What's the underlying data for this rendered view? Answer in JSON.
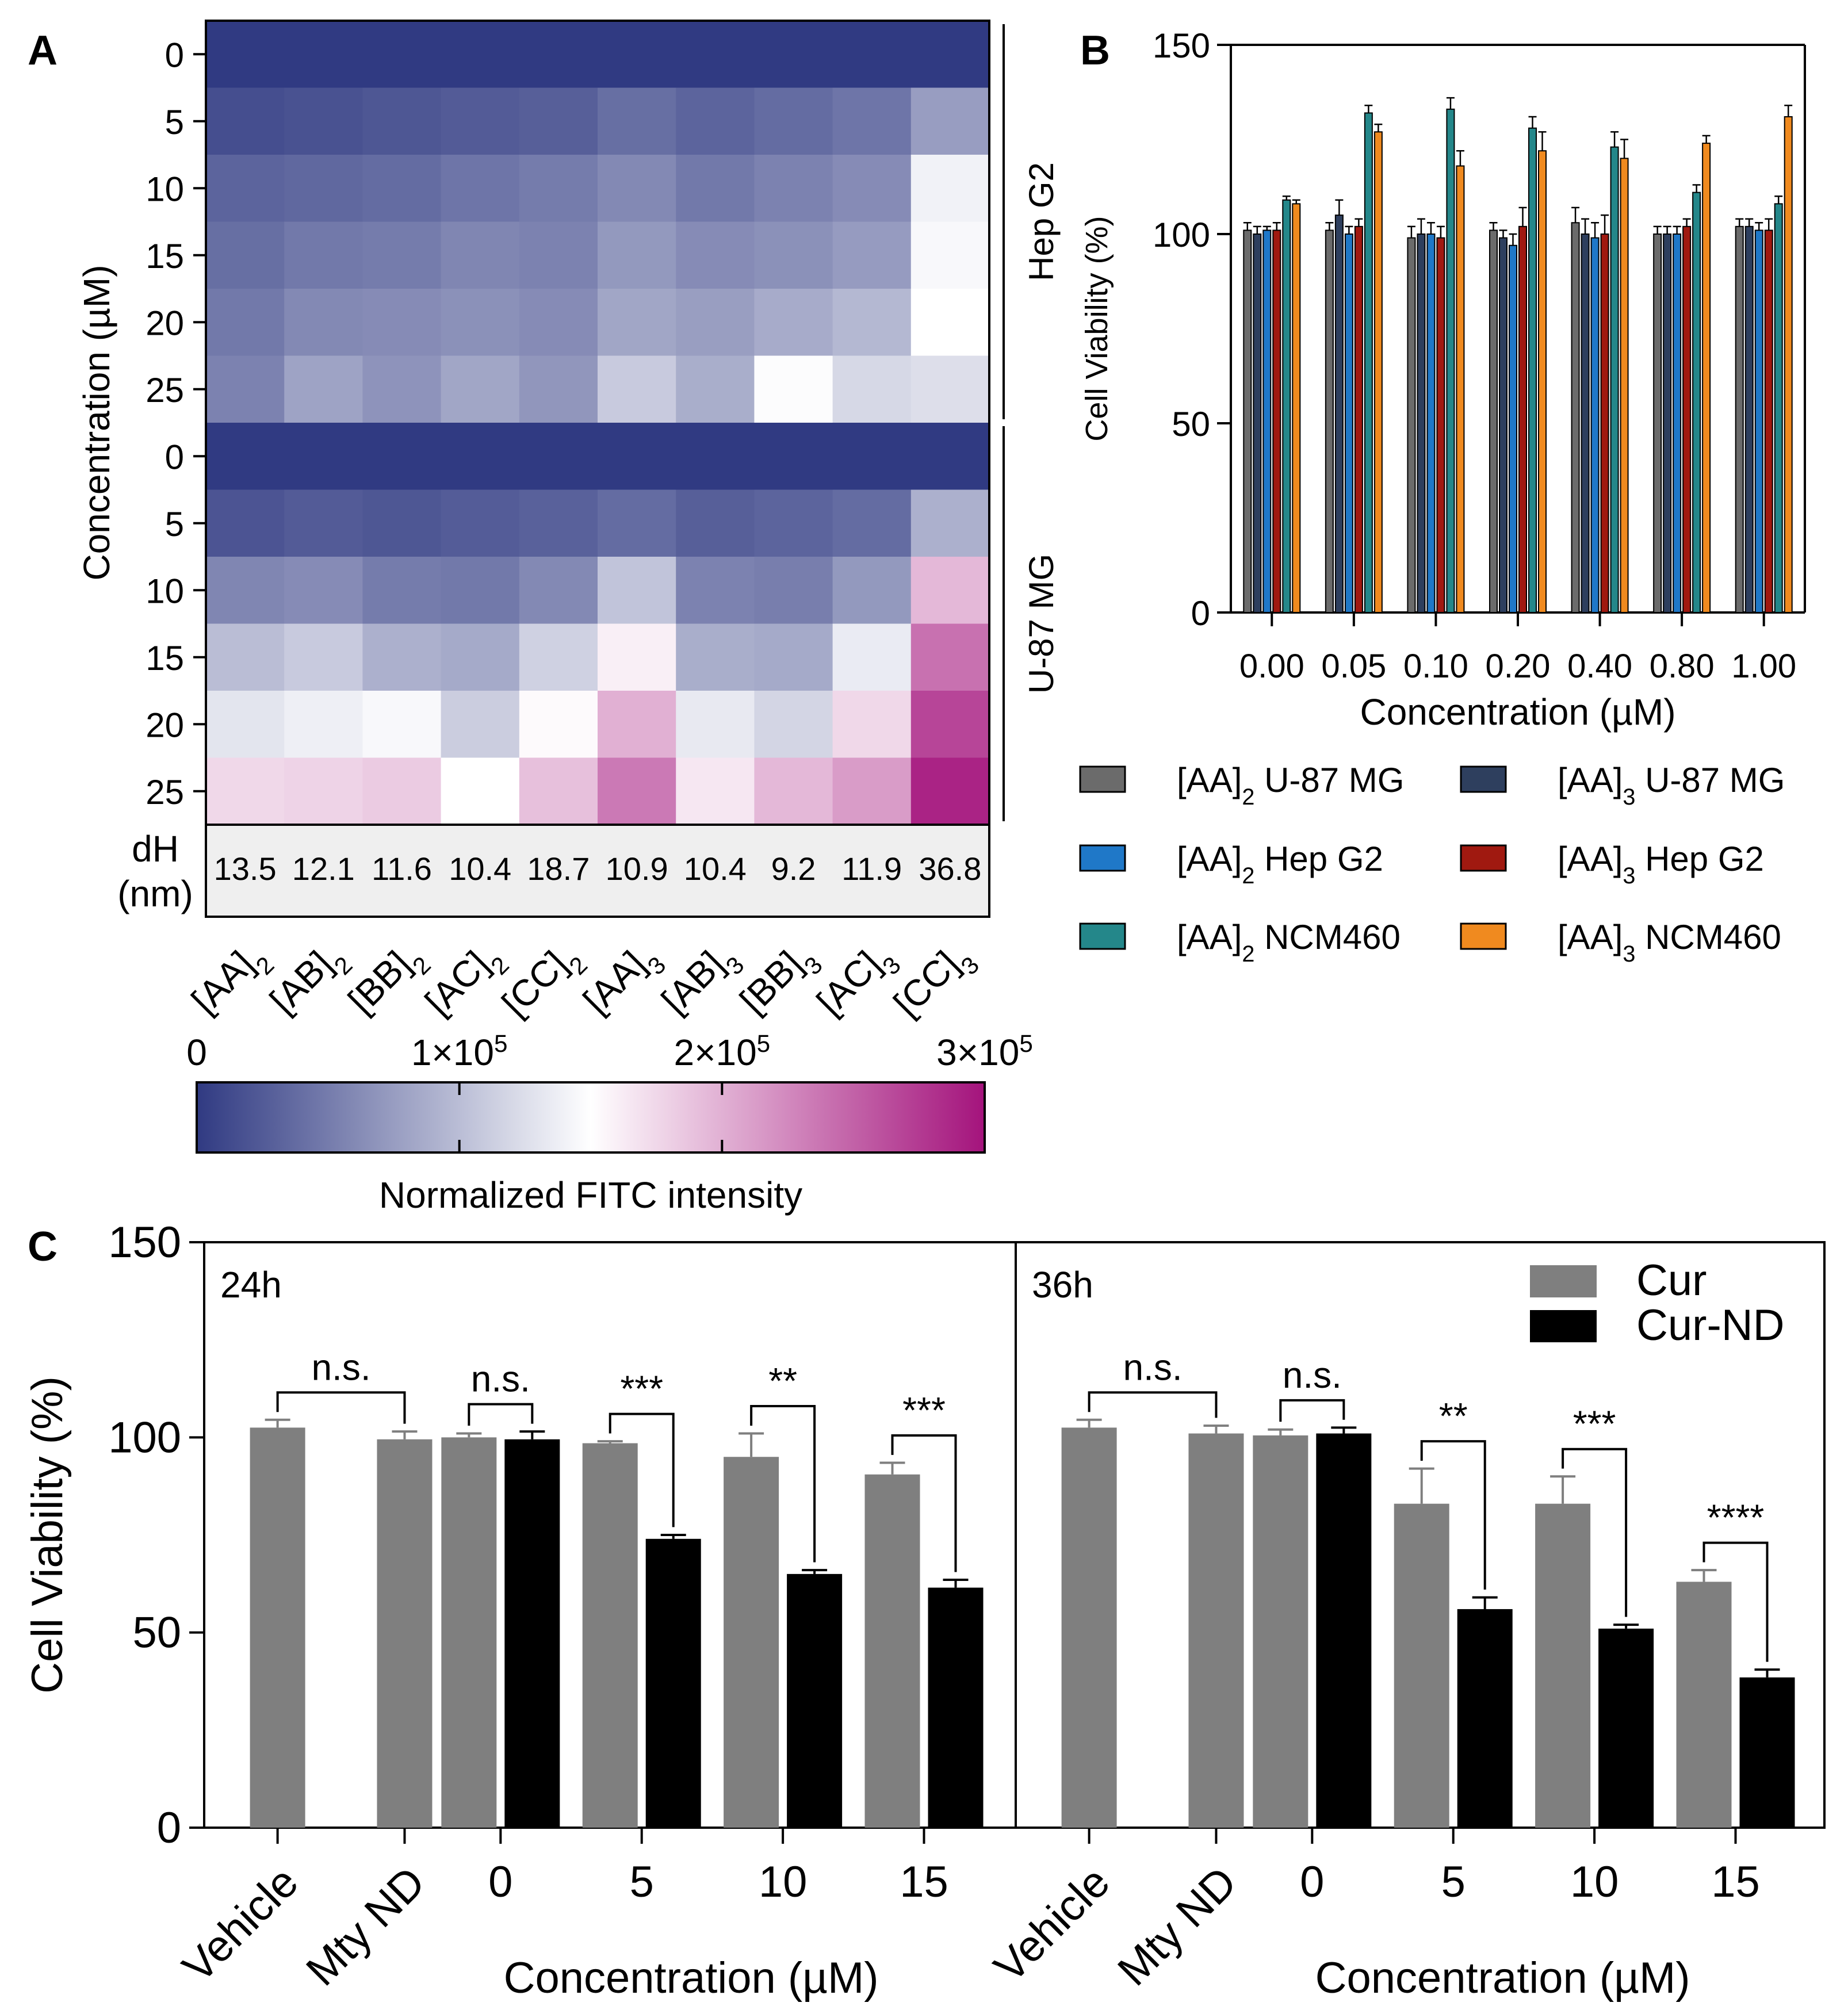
{
  "colors": {
    "cmap_low": "#303a82",
    "cmap_mid": "#ffffff",
    "cmap_high": "#a4137c",
    "cur": "#7f7f7f",
    "cur_nd": "#000000",
    "dh_bg": "#efefef"
  },
  "panel_labels": {
    "a": "A",
    "b": "B",
    "c": "C"
  },
  "chart_data": [
    {
      "panel": "A",
      "type": "heatmap",
      "ylabel": "Concentration (µM)",
      "columns": [
        "[AA]2",
        "[AB]2",
        "[BB]2",
        "[AC]2",
        "[CC]2",
        "[AA]3",
        "[AB]3",
        "[BB]3",
        "[AC]3",
        "[CC]3"
      ],
      "column_labels": [
        {
          "base": "[AA]",
          "sub": "2"
        },
        {
          "base": "[AB]",
          "sub": "2"
        },
        {
          "base": "[BB]",
          "sub": "2"
        },
        {
          "base": "[AC]",
          "sub": "2"
        },
        {
          "base": "[CC]",
          "sub": "2"
        },
        {
          "base": "[AA]",
          "sub": "3"
        },
        {
          "base": "[AB]",
          "sub": "3"
        },
        {
          "base": "[BB]",
          "sub": "3"
        },
        {
          "base": "[AC]",
          "sub": "3"
        },
        {
          "base": "[CC]",
          "sub": "3"
        }
      ],
      "groups": [
        {
          "name": "Hep G2",
          "rows": [
            "0",
            "5",
            "10",
            "15",
            "20",
            "25"
          ],
          "values": [
            [
              0,
              0,
              0,
              0,
              0,
              0,
              0,
              0,
              0,
              0
            ],
            [
              15000,
              18000,
              22000,
              25000,
              28000,
              40000,
              32000,
              38000,
              45000,
              75000
            ],
            [
              32000,
              35000,
              38000,
              45000,
              50000,
              60000,
              48000,
              55000,
              62000,
              140000
            ],
            [
              40000,
              48000,
              50000,
              58000,
              55000,
              72000,
              62000,
              66000,
              74000,
              145000
            ],
            [
              48000,
              60000,
              62000,
              66000,
              62000,
              82000,
              76000,
              86000,
              96000,
              150000
            ],
            [
              55000,
              80000,
              68000,
              82000,
              70000,
              110000,
              88000,
              148000,
              120000,
              125000
            ]
          ]
        },
        {
          "name": "U-87 MG",
          "rows": [
            "0",
            "5",
            "10",
            "15",
            "20",
            "25"
          ],
          "values": [
            [
              0,
              0,
              0,
              0,
              0,
              0,
              0,
              0,
              0,
              0
            ],
            [
              20000,
              25000,
              22000,
              26000,
              30000,
              38000,
              28000,
              32000,
              38000,
              90000
            ],
            [
              58000,
              62000,
              50000,
              48000,
              60000,
              105000,
              55000,
              52000,
              72000,
              195000
            ],
            [
              100000,
              110000,
              90000,
              85000,
              115000,
              160000,
              88000,
              85000,
              135000,
              240000
            ],
            [
              130000,
              138000,
              145000,
              112000,
              153000,
              200000,
              133000,
              118000,
              175000,
              268000
            ],
            [
              175000,
              178000,
              183000,
              150000,
              190000,
              235000,
              165000,
              195000,
              213000,
              290000
            ]
          ]
        }
      ],
      "dh_label": [
        "dH",
        "(nm)"
      ],
      "dh_values": [
        "13.5",
        "12.1",
        "11.6",
        "10.4",
        "18.7",
        "10.9",
        "10.4",
        "9.2",
        "11.9",
        "36.8"
      ],
      "colorbar": {
        "range": [
          0,
          300000
        ],
        "ticks": [
          {
            "base": "0",
            "exp": ""
          },
          {
            "base": "1×10",
            "exp": "5"
          },
          {
            "base": "2×10",
            "exp": "5"
          },
          {
            "base": "3×10",
            "exp": "5"
          }
        ],
        "label": "Normalized FITC intensity"
      }
    },
    {
      "panel": "B",
      "type": "bar",
      "ylabel": "Cell Viability (%)",
      "xlabel": "Concentration (µM)",
      "ylim": [
        0,
        150
      ],
      "yticks": [
        "0",
        "50",
        "100",
        "150"
      ],
      "categories": [
        "0.00",
        "0.05",
        "0.10",
        "0.20",
        "0.40",
        "0.80",
        "1.00"
      ],
      "series": [
        {
          "name": "[AA]2 U-87 MG",
          "label": {
            "base": "[AA]",
            "sub": "2",
            "rest": " U-87 MG"
          },
          "color": "#6b6b6b",
          "values": [
            101,
            101,
            99,
            101,
            103,
            100,
            102
          ],
          "errors": [
            2,
            2,
            3,
            2,
            4,
            2,
            2
          ]
        },
        {
          "name": "[AA]3 U-87 MG",
          "label": {
            "base": "[AA]",
            "sub": "3",
            "rest": " U-87 MG"
          },
          "color": "#2e3f5e",
          "values": [
            100,
            105,
            100,
            99,
            100,
            100,
            102
          ],
          "errors": [
            2,
            4,
            4,
            2,
            4,
            2,
            2
          ]
        },
        {
          "name": "[AA]2 Hep G2",
          "label": {
            "base": "[AA]",
            "sub": "2",
            "rest": " Hep G2"
          },
          "color": "#1f78c8",
          "values": [
            101,
            100,
            100,
            97,
            99,
            100,
            101
          ],
          "errors": [
            1,
            2,
            3,
            3,
            4,
            2,
            2
          ]
        },
        {
          "name": "[AA]3 Hep G2",
          "label": {
            "base": "[AA]",
            "sub": "3",
            "rest": " Hep G2"
          },
          "color": "#a01910",
          "values": [
            101,
            102,
            99,
            102,
            100,
            102,
            101
          ],
          "errors": [
            2,
            2,
            3,
            5,
            5,
            2,
            3
          ]
        },
        {
          "name": "[AA]2 NCM460",
          "label": {
            "base": "[AA]",
            "sub": "2",
            "rest": " NCM460"
          },
          "color": "#24878a",
          "values": [
            109,
            132,
            133,
            128,
            123,
            111,
            108
          ],
          "errors": [
            1,
            2,
            3,
            3,
            4,
            2,
            2
          ]
        },
        {
          "name": "[AA]3 NCM460",
          "label": {
            "base": "[AA]",
            "sub": "3",
            "rest": " NCM460"
          },
          "color": "#f08a1f",
          "values": [
            108,
            127,
            118,
            122,
            120,
            124,
            131
          ],
          "errors": [
            1,
            2,
            4,
            5,
            5,
            2,
            3
          ]
        }
      ],
      "legend_order": [
        0,
        1,
        2,
        3,
        4,
        5
      ]
    },
    {
      "panel": "C",
      "type": "bar",
      "ylabel": "Cell Viability (%)",
      "xlabel": "Concentration (µM)",
      "ylim": [
        0,
        150
      ],
      "yticks": [
        "0",
        "50",
        "100",
        "150"
      ],
      "legend": [
        "Cur",
        "Cur-ND"
      ],
      "subpanels": [
        {
          "title": "24h",
          "categories": [
            "Vehicle",
            "Mty ND",
            "0",
            "5",
            "10",
            "15"
          ],
          "controls": [
            {
              "label": "Vehicle",
              "value": 102.5,
              "error": 2
            },
            {
              "label": "Mty ND",
              "value": 99.5,
              "error": 2
            }
          ],
          "groups": [
            {
              "label": "0",
              "cur": 100,
              "cur_err": 1,
              "nd": 99.5,
              "nd_err": 2
            },
            {
              "label": "5",
              "cur": 98.5,
              "cur_err": 0.5,
              "nd": 74,
              "nd_err": 1
            },
            {
              "label": "10",
              "cur": 95,
              "cur_err": 6,
              "nd": 65,
              "nd_err": 1
            },
            {
              "label": "15",
              "cur": 90.5,
              "cur_err": 3,
              "nd": 61.5,
              "nd_err": 2
            }
          ],
          "significance": [
            "n.s.",
            "n.s.",
            "***",
            "**",
            "***"
          ]
        },
        {
          "title": "36h",
          "categories": [
            "Vehicle",
            "Mty ND",
            "0",
            "5",
            "10",
            "15"
          ],
          "controls": [
            {
              "label": "Vehicle",
              "value": 102.5,
              "error": 2
            },
            {
              "label": "Mty ND",
              "value": 101,
              "error": 2
            }
          ],
          "groups": [
            {
              "label": "0",
              "cur": 100.5,
              "cur_err": 1.5,
              "nd": 101,
              "nd_err": 1.5
            },
            {
              "label": "5",
              "cur": 83,
              "cur_err": 9,
              "nd": 56,
              "nd_err": 3
            },
            {
              "label": "10",
              "cur": 83,
              "cur_err": 7,
              "nd": 51,
              "nd_err": 1
            },
            {
              "label": "15",
              "cur": 63,
              "cur_err": 3,
              "nd": 38.5,
              "nd_err": 2
            }
          ],
          "significance": [
            "n.s.",
            "n.s.",
            "**",
            "***",
            "****"
          ]
        }
      ]
    }
  ]
}
